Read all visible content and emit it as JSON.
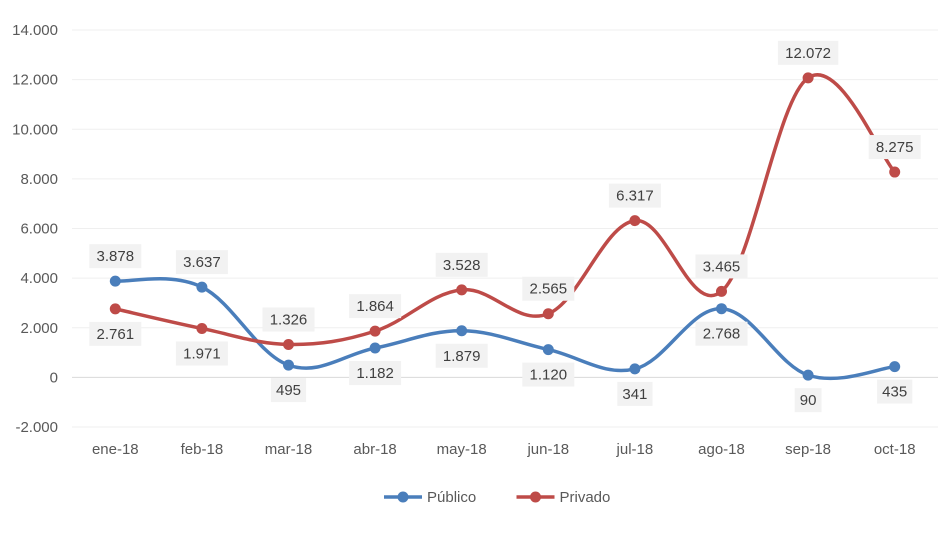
{
  "chart_data": {
    "type": "line",
    "smooth": true,
    "categories": [
      "ene-18",
      "feb-18",
      "mar-18",
      "abr-18",
      "may-18",
      "jun-18",
      "jul-18",
      "ago-18",
      "sep-18",
      "oct-18"
    ],
    "series": [
      {
        "name": "Público",
        "color": "#4a7ebb",
        "values": [
          3878,
          3637,
          495,
          1182,
          1879,
          1120,
          341,
          2768,
          90,
          435
        ],
        "labels": [
          "3.878",
          "3.637",
          "495",
          "1.182",
          "1.879",
          "1.120",
          "341",
          "2.768",
          "90",
          "435"
        ]
      },
      {
        "name": "Privado",
        "color": "#be4b48",
        "values": [
          2761,
          1971,
          1326,
          1864,
          3528,
          2565,
          6317,
          3465,
          12072,
          8275
        ],
        "labels": [
          "2.761",
          "1.971",
          "1.326",
          "1.864",
          "3.528",
          "2.565",
          "6.317",
          "3.465",
          "12.072",
          "8.275"
        ]
      }
    ],
    "y_ticks": [
      -2000,
      0,
      2000,
      4000,
      6000,
      8000,
      10000,
      12000,
      14000
    ],
    "y_tick_labels": [
      "-2.000",
      "0",
      "2.000",
      "4.000",
      "6.000",
      "8.000",
      "10.000",
      "12.000",
      "14.000"
    ],
    "ylim": [
      -2000,
      14000
    ],
    "grid": true,
    "legend_position": "bottom"
  }
}
